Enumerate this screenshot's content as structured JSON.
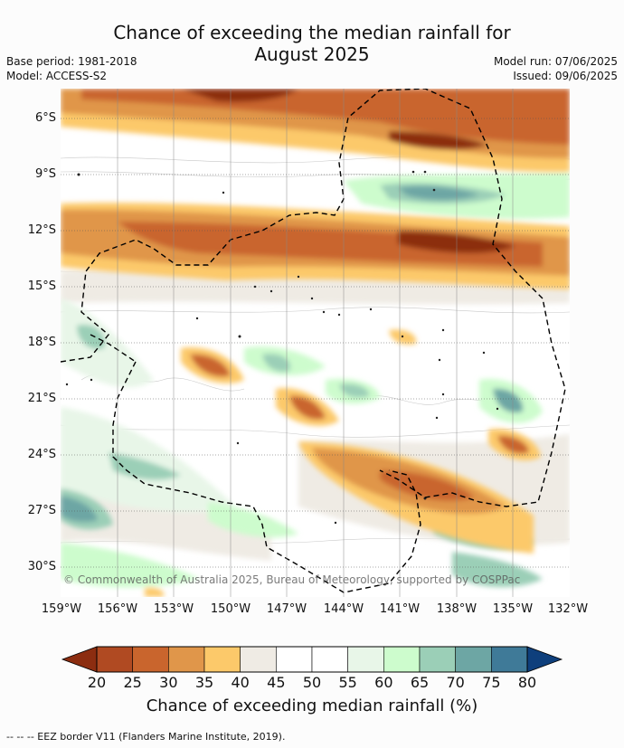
{
  "header": {
    "title_line1": "Chance of exceeding the median rainfall for",
    "title_line2": "August 2025",
    "base_period": "Base period: 1981-2018",
    "model": "Model: ACCESS-S2",
    "model_run": "Model run: 07/06/2025",
    "issued": "Issued: 09/06/2025"
  },
  "map": {
    "y_ticks": [
      "6°S",
      "9°S",
      "12°S",
      "15°S",
      "18°S",
      "21°S",
      "24°S",
      "27°S",
      "30°S"
    ],
    "x_ticks": [
      "159°W",
      "156°W",
      "153°W",
      "150°W",
      "147°W",
      "144°W",
      "141°W",
      "138°W",
      "135°W",
      "132°W"
    ],
    "copyright": "© Commonwealth of Australia 2025, Bureau of Meteorology, supported by COSPPac",
    "gridlines": "dotted"
  },
  "colorbar": {
    "ticks": [
      "20",
      "25",
      "30",
      "35",
      "40",
      "45",
      "50",
      "55",
      "60",
      "65",
      "70",
      "75",
      "80"
    ],
    "colors": [
      "#8c2d10",
      "#b04a22",
      "#c9652d",
      "#e0964a",
      "#fcc96a",
      "#efebe4",
      "#ffffff",
      "#ffffff",
      "#e8f6e8",
      "#cdfccd",
      "#9bcfb7",
      "#6da6a4",
      "#3f7a98",
      "#0e3f7c"
    ],
    "title": "Chance of exceeding median rainfall (%)"
  },
  "footer": {
    "legend": "--  --  -- EEZ border V11 (Flanders Marine Institute, 2019)."
  }
}
